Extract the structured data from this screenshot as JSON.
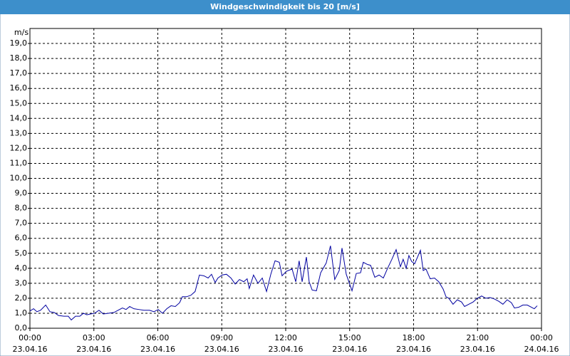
{
  "chart_data": {
    "type": "line",
    "title": "Windgeschwindigkeit bis 20 [m/s]",
    "y_label": "m/s",
    "grid": true,
    "grid_style": "dashed",
    "xlim": [
      0,
      24
    ],
    "ylim": [
      0,
      20
    ],
    "xticks": [
      {
        "value": 0,
        "label": [
          "00:00",
          "23.04.16"
        ]
      },
      {
        "value": 3,
        "label": [
          "03:00",
          "23.04.16"
        ]
      },
      {
        "value": 6,
        "label": [
          "06:00",
          "23.04.16"
        ]
      },
      {
        "value": 9,
        "label": [
          "09:00",
          "23.04.16"
        ]
      },
      {
        "value": 12,
        "label": [
          "12:00",
          "23.04.16"
        ]
      },
      {
        "value": 15,
        "label": [
          "15:00",
          "23.04.16"
        ]
      },
      {
        "value": 18,
        "label": [
          "18:00",
          "23.04.16"
        ]
      },
      {
        "value": 21,
        "label": [
          "21:00",
          "23.04.16"
        ]
      },
      {
        "value": 24,
        "label": [
          "00:00",
          "24.04.16"
        ]
      }
    ],
    "yticks": [
      {
        "value": 0,
        "label": "0,0"
      },
      {
        "value": 1,
        "label": "1,0"
      },
      {
        "value": 2,
        "label": "2,0"
      },
      {
        "value": 3,
        "label": "3,0"
      },
      {
        "value": 4,
        "label": "4,0"
      },
      {
        "value": 5,
        "label": "5,0"
      },
      {
        "value": 6,
        "label": "6,0"
      },
      {
        "value": 7,
        "label": "7,0"
      },
      {
        "value": 8,
        "label": "8,0"
      },
      {
        "value": 9,
        "label": "9,0"
      },
      {
        "value": 10,
        "label": "10,0"
      },
      {
        "value": 11,
        "label": "11,0"
      },
      {
        "value": 12,
        "label": "12,0"
      },
      {
        "value": 13,
        "label": "13,0"
      },
      {
        "value": 14,
        "label": "14,0"
      },
      {
        "value": 15,
        "label": "15,0"
      },
      {
        "value": 16,
        "label": "16,0"
      },
      {
        "value": 17,
        "label": "17,0"
      },
      {
        "value": 18,
        "label": "18,0"
      },
      {
        "value": 19,
        "label": "19,0"
      }
    ],
    "x": [
      0,
      0.17,
      0.33,
      0.5,
      0.74,
      0.94,
      1.14,
      1.34,
      1.6,
      1.8,
      1.94,
      2.14,
      2.34,
      2.51,
      2.67,
      2.84,
      3.04,
      3.24,
      3.44,
      3.68,
      3.94,
      4.14,
      4.34,
      4.51,
      4.68,
      4.88,
      5.11,
      5.35,
      5.61,
      5.82,
      6.02,
      6.22,
      6.42,
      6.62,
      6.82,
      7.02,
      7.15,
      7.35,
      7.55,
      7.75,
      7.95,
      8.16,
      8.36,
      8.52,
      8.69,
      8.82,
      9.02,
      9.22,
      9.43,
      9.63,
      9.83,
      10.03,
      10.19,
      10.29,
      10.49,
      10.7,
      10.9,
      11.1,
      11.3,
      11.5,
      11.7,
      11.83,
      12.03,
      12.3,
      12.47,
      12.63,
      12.77,
      12.97,
      13.1,
      13.24,
      13.44,
      13.64,
      13.9,
      14.1,
      14.3,
      14.51,
      14.64,
      14.84,
      15.11,
      15.31,
      15.51,
      15.64,
      15.84,
      15.98,
      16.18,
      16.38,
      16.58,
      16.78,
      16.98,
      17.18,
      17.38,
      17.51,
      17.65,
      17.78,
      17.91,
      18.05,
      18.32,
      18.45,
      18.58,
      18.78,
      18.98,
      19.18,
      19.39,
      19.52,
      19.65,
      19.85,
      20.05,
      20.25,
      20.39,
      20.59,
      20.79,
      20.99,
      21.19,
      21.39,
      21.59,
      21.79,
      21.99,
      22.19,
      22.39,
      22.59,
      22.73,
      22.93,
      23.13,
      23.33,
      23.53,
      23.66,
      23.8
    ],
    "series": [
      {
        "color": "#0000a0",
        "values": [
          1.15,
          1.3,
          1.1,
          1.2,
          1.55,
          1.1,
          1.05,
          0.85,
          0.8,
          0.8,
          0.55,
          0.8,
          0.8,
          1.0,
          0.9,
          0.95,
          1.0,
          1.2,
          0.95,
          1.0,
          1.05,
          1.2,
          1.35,
          1.25,
          1.45,
          1.3,
          1.25,
          1.2,
          1.2,
          1.1,
          1.25,
          1.0,
          1.3,
          1.5,
          1.45,
          1.7,
          2.1,
          2.1,
          2.2,
          2.45,
          3.55,
          3.5,
          3.35,
          3.6,
          3.05,
          3.35,
          3.55,
          3.6,
          3.35,
          2.95,
          3.25,
          3.1,
          3.3,
          2.65,
          3.55,
          3.0,
          3.35,
          2.45,
          3.6,
          4.5,
          4.4,
          3.5,
          3.8,
          3.95,
          3.1,
          4.5,
          3.1,
          4.75,
          3.1,
          2.55,
          2.5,
          3.7,
          4.35,
          5.5,
          3.25,
          3.85,
          5.35,
          3.6,
          2.5,
          3.65,
          3.7,
          4.4,
          4.25,
          4.2,
          3.4,
          3.55,
          3.35,
          4.0,
          4.6,
          5.25,
          4.1,
          4.6,
          4.0,
          4.85,
          4.45,
          4.3,
          5.2,
          3.85,
          3.95,
          3.3,
          3.35,
          3.1,
          2.6,
          2.1,
          2.0,
          1.6,
          1.9,
          1.75,
          1.45,
          1.6,
          1.75,
          2.0,
          2.15,
          2.0,
          2.05,
          1.95,
          1.8,
          1.6,
          1.9,
          1.7,
          1.35,
          1.4,
          1.55,
          1.55,
          1.4,
          1.3,
          1.5
        ]
      }
    ]
  }
}
